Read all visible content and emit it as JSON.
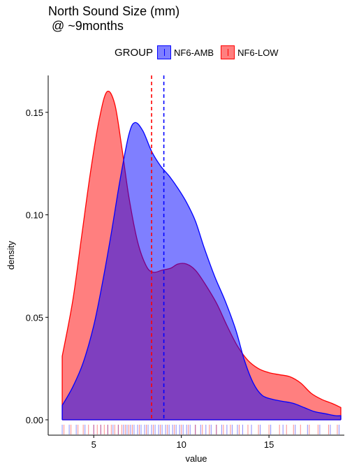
{
  "chart_data": {
    "type": "area",
    "title": "North Sound Size (mm)\n @ ~9months",
    "xlabel": "value",
    "ylabel": "density",
    "xlim": [
      2.4,
      19.3
    ],
    "ylim": [
      -0.0075,
      0.168
    ],
    "x_ticks": [
      5,
      10,
      15
    ],
    "x_tick_labels": [
      "5",
      "10",
      "15"
    ],
    "y_ticks": [
      0.0,
      0.05,
      0.1,
      0.15
    ],
    "y_tick_labels": [
      "0.00",
      "0.05",
      "0.10",
      "0.15"
    ],
    "grid": false,
    "legend": {
      "title": "GROUP",
      "position": "top"
    },
    "series": [
      {
        "name": "NF6-LOW",
        "color": "#ff0000",
        "fill": "#ff0000",
        "mean": 8.3,
        "x": [
          3.2,
          3.8,
          4.3,
          4.8,
          5.3,
          5.75,
          6.2,
          6.6,
          7.0,
          7.5,
          8.0,
          8.4,
          8.9,
          9.4,
          9.8,
          10.3,
          10.8,
          11.3,
          12.0,
          12.6,
          13.2,
          13.8,
          14.4,
          15.0,
          15.6,
          16.2,
          16.8,
          17.4,
          18.0,
          18.6,
          19.1
        ],
        "y": [
          0.031,
          0.058,
          0.089,
          0.12,
          0.146,
          0.16,
          0.154,
          0.133,
          0.109,
          0.087,
          0.075,
          0.072,
          0.073,
          0.074,
          0.076,
          0.076,
          0.073,
          0.067,
          0.057,
          0.046,
          0.036,
          0.029,
          0.025,
          0.023,
          0.022,
          0.021,
          0.018,
          0.013,
          0.01,
          0.008,
          0.006
        ]
      },
      {
        "name": "NF6-AMB",
        "color": "#0000ff",
        "fill": "#0000ff",
        "mean": 9.0,
        "x": [
          3.2,
          3.8,
          4.4,
          5.0,
          5.5,
          6.0,
          6.5,
          7.0,
          7.35,
          7.8,
          8.3,
          8.8,
          9.3,
          9.8,
          10.3,
          10.8,
          11.3,
          11.9,
          12.5,
          13.1,
          13.6,
          14.1,
          14.6,
          15.2,
          15.8,
          16.4,
          17.0,
          17.6,
          18.2,
          18.8,
          19.1
        ],
        "y": [
          0.007,
          0.016,
          0.028,
          0.046,
          0.067,
          0.091,
          0.117,
          0.139,
          0.145,
          0.141,
          0.131,
          0.124,
          0.119,
          0.113,
          0.106,
          0.097,
          0.084,
          0.07,
          0.058,
          0.044,
          0.029,
          0.018,
          0.012,
          0.01,
          0.009,
          0.008,
          0.006,
          0.004,
          0.003,
          0.002,
          0.002
        ]
      }
    ],
    "rug": {
      "NF6-AMB": [
        3.2,
        3.6,
        4.0,
        4.5,
        5.0,
        5.4,
        5.8,
        6.1,
        6.4,
        6.7,
        6.9,
        7.1,
        7.3,
        7.5,
        7.7,
        7.9,
        8.1,
        8.3,
        8.5,
        8.7,
        8.9,
        9.1,
        9.3,
        9.5,
        9.7,
        9.9,
        10.1,
        10.3,
        10.5,
        10.8,
        11.1,
        11.4,
        11.7,
        12.0,
        12.3,
        12.6,
        12.9,
        13.2,
        13.5,
        14.0,
        14.5,
        15.1,
        15.8,
        16.5,
        17.2,
        17.9,
        18.5,
        19.0
      ],
      "NF6-LOW": [
        3.3,
        3.7,
        4.1,
        4.4,
        4.7,
        5.0,
        5.2,
        5.4,
        5.6,
        5.8,
        6.0,
        6.2,
        6.4,
        6.6,
        6.8,
        7.0,
        7.2,
        7.6,
        8.0,
        8.4,
        8.8,
        9.2,
        9.6,
        10.0,
        10.4,
        10.8,
        11.2,
        11.6,
        12.0,
        12.4,
        12.8,
        13.3,
        13.8,
        14.4,
        15.0,
        15.6,
        16.0,
        16.4,
        16.8,
        17.3,
        17.8,
        18.4,
        18.9
      ]
    }
  }
}
